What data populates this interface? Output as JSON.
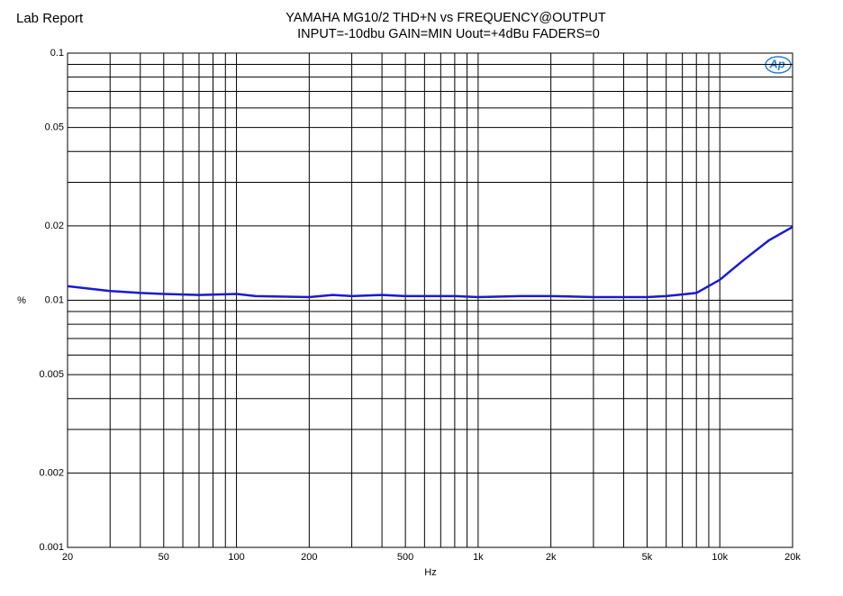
{
  "header": "Lab Report",
  "chart_data": {
    "type": "line",
    "title": "YAMAHA MG10/2 THD+N vs FREQUENCY@OUTPUT",
    "subtitle": "INPUT=-10dbu GAIN=MIN Uout=+4dBu FADERS=0",
    "x_label": "Hz",
    "y_label": "%",
    "logo": "Ap",
    "x_scale": "log",
    "y_scale": "log",
    "grid": true,
    "xlim": [
      20,
      20000
    ],
    "ylim": [
      0.001,
      0.1
    ],
    "xticks": [
      20,
      50,
      100,
      200,
      500,
      {
        "value": 1000,
        "label": "1k"
      },
      {
        "value": 2000,
        "label": "2k"
      },
      {
        "value": 5000,
        "label": "5k"
      },
      {
        "value": 10000,
        "label": "10k"
      },
      {
        "value": 20000,
        "label": "20k"
      }
    ],
    "xminor": [
      30,
      40,
      60,
      70,
      80,
      90,
      300,
      400,
      600,
      700,
      800,
      900,
      3000,
      4000,
      6000,
      7000,
      8000,
      9000
    ],
    "yticks": [
      0.001,
      0.002,
      0.005,
      0.01,
      0.02,
      0.05,
      0.1
    ],
    "yminor": [
      0.003,
      0.004,
      0.006,
      0.007,
      0.008,
      0.009,
      0.03,
      0.04,
      0.06,
      0.07,
      0.08,
      0.09
    ],
    "x": [
      20,
      30,
      40,
      50,
      70,
      100,
      120,
      200,
      250,
      300,
      400,
      500,
      800,
      1000,
      1500,
      2000,
      3000,
      4000,
      5000,
      6000,
      8000,
      10000,
      12500,
      16000,
      20000
    ],
    "series": [
      {
        "name": "THD+N",
        "color": "#1a1ad0",
        "values": [
          0.0114,
          0.0109,
          0.0107,
          0.0106,
          0.0105,
          0.0106,
          0.0104,
          0.0103,
          0.0105,
          0.0104,
          0.0105,
          0.0104,
          0.0104,
          0.0103,
          0.0104,
          0.0104,
          0.0103,
          0.0103,
          0.0103,
          0.0104,
          0.0107,
          0.0121,
          0.0145,
          0.0175,
          0.0198
        ]
      }
    ]
  }
}
